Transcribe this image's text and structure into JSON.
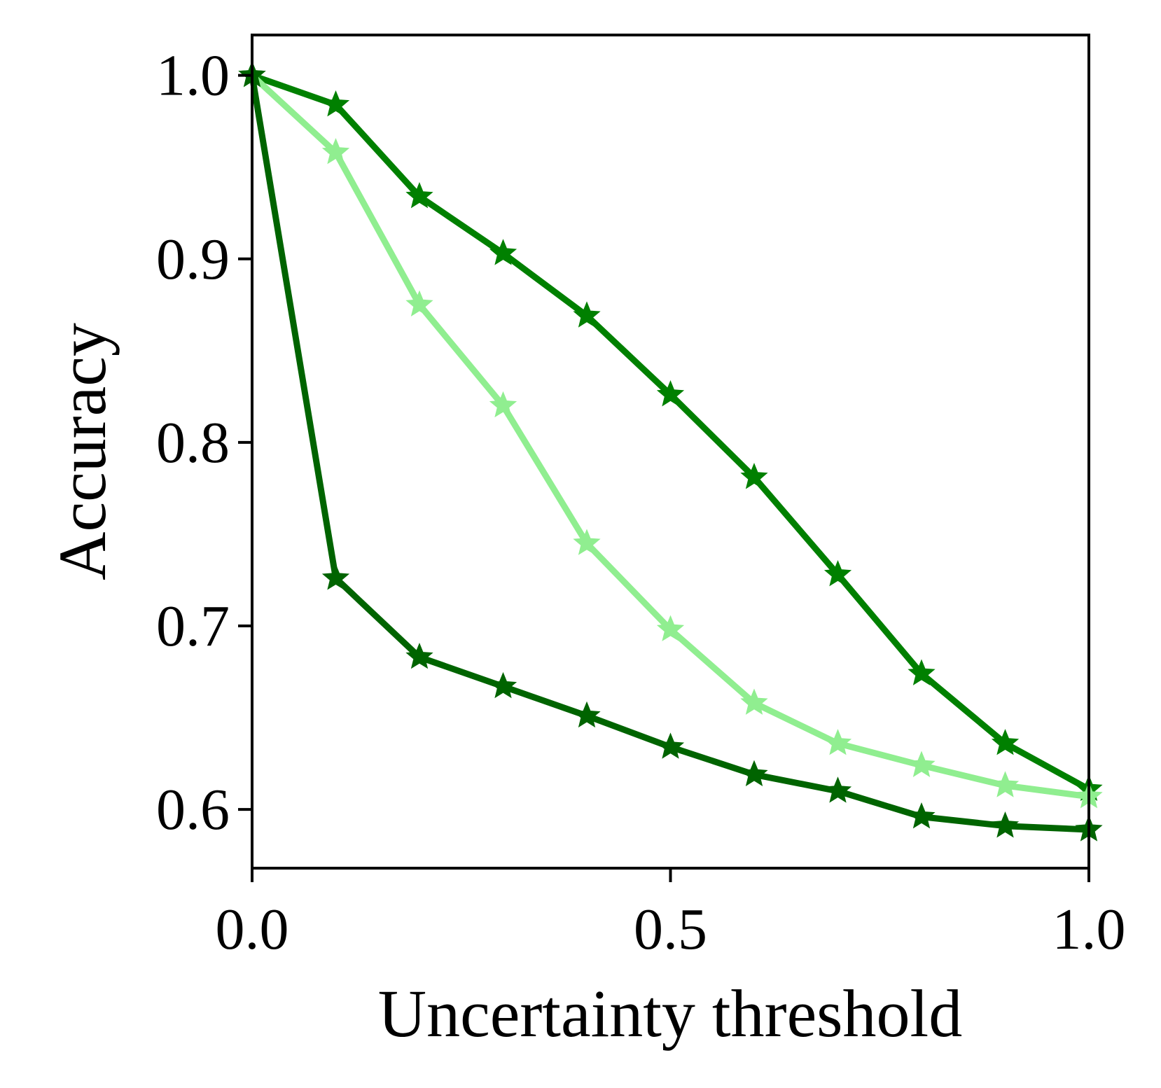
{
  "chart_data": {
    "type": "line",
    "title": "",
    "xlabel": "Uncertainty threshold",
    "ylabel": "Accuracy",
    "xlim": [
      0,
      1
    ],
    "ylim": [
      0.568,
      1.022
    ],
    "xticks": [
      0.0,
      0.5,
      1.0
    ],
    "xtick_labels": [
      "0.0",
      "0.5",
      "1.0"
    ],
    "yticks": [
      0.6,
      0.7,
      0.8,
      0.9,
      1.0
    ],
    "ytick_labels": [
      "0.6",
      "0.7",
      "0.8",
      "0.9",
      "1.0"
    ],
    "grid": false,
    "legend": "none",
    "x": [
      0.0,
      0.1,
      0.2,
      0.3,
      0.4,
      0.5,
      0.6,
      0.7,
      0.8,
      0.9,
      1.0
    ],
    "series": [
      {
        "color": "#008000",
        "marker": "star",
        "values": [
          1.0,
          0.984,
          0.934,
          0.903,
          0.869,
          0.826,
          0.781,
          0.728,
          0.674,
          0.636,
          0.611
        ]
      },
      {
        "color": "#90EE90",
        "marker": "star",
        "values": [
          1.0,
          0.958,
          0.875,
          0.82,
          0.745,
          0.698,
          0.658,
          0.636,
          0.624,
          0.613,
          0.607
        ]
      },
      {
        "color": "#006400",
        "marker": "star",
        "values": [
          1.0,
          0.726,
          0.683,
          0.667,
          0.651,
          0.634,
          0.619,
          0.61,
          0.596,
          0.591,
          0.589
        ]
      }
    ]
  }
}
